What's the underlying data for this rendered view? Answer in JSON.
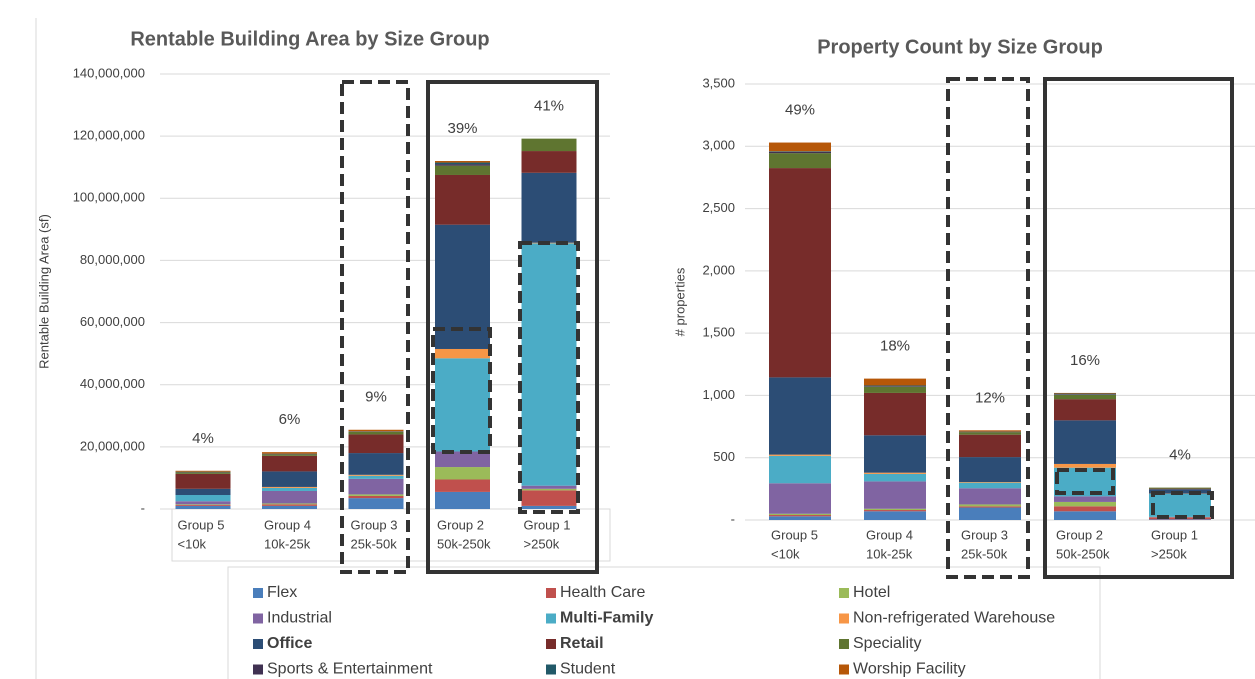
{
  "chart_data": [
    {
      "type": "bar",
      "stacked": true,
      "title": "Rentable Building Area by Size Group",
      "y_label": "Rentable Building Area (sf)",
      "categories": [
        [
          "Group 5",
          "<10k"
        ],
        [
          "Group 4",
          "10k-25k"
        ],
        [
          "Group 3",
          "25k-50k"
        ],
        [
          "Group 2",
          "50k-250k"
        ],
        [
          "Group 1",
          ">250k"
        ]
      ],
      "percent_labels": [
        "4%",
        "6%",
        "9%",
        "39%",
        "41%"
      ],
      "ylim": [
        0,
        140000000
      ],
      "yticks": [
        {
          "value": 0,
          "label": "-"
        },
        {
          "value": 20000000,
          "label": "20,000,000"
        },
        {
          "value": 40000000,
          "label": "40,000,000"
        },
        {
          "value": 60000000,
          "label": "60,000,000"
        },
        {
          "value": 80000000,
          "label": "80,000,000"
        },
        {
          "value": 100000000,
          "label": "100,000,000"
        },
        {
          "value": 120000000,
          "label": "120,000,000"
        },
        {
          "value": 140000000,
          "label": "140,000,000"
        }
      ],
      "grid": true,
      "series": [
        {
          "name": "Flex",
          "color": "#4a7ebb",
          "values": [
            1000000,
            1000000,
            3500000,
            5500000,
            1000000
          ]
        },
        {
          "name": "Health Care",
          "color": "#c0504d",
          "values": [
            300000,
            500000,
            700000,
            4000000,
            5000000
          ]
        },
        {
          "name": "Hotel",
          "color": "#9bbb59",
          "values": [
            200000,
            300000,
            500000,
            4000000,
            500000
          ]
        },
        {
          "name": "Industrial",
          "color": "#8064a2",
          "values": [
            1000000,
            4000000,
            5000000,
            5000000,
            1000000
          ]
        },
        {
          "name": "Multi-Family",
          "color": "#4bacc6",
          "bold": true,
          "values": [
            2000000,
            1000000,
            1000000,
            30000000,
            78000000
          ]
        },
        {
          "name": "Non-refrigerated Warehouse",
          "color": "#f79646",
          "values": [
            0,
            300000,
            300000,
            3000000,
            200000
          ]
        },
        {
          "name": "Office",
          "color": "#2c4d75",
          "bold": true,
          "values": [
            2000000,
            5000000,
            7000000,
            40000000,
            22500000
          ]
        },
        {
          "name": "Retail",
          "color": "#772c2a",
          "bold": true,
          "values": [
            4800000,
            5000000,
            6000000,
            16000000,
            7000000
          ]
        },
        {
          "name": "Speciality",
          "color": "#5f7530",
          "values": [
            500000,
            500000,
            800000,
            3000000,
            4000000
          ]
        },
        {
          "name": "Sports & Entertainment",
          "color": "#403152",
          "values": [
            100000,
            100000,
            100000,
            500000,
            0
          ]
        },
        {
          "name": "Student",
          "color": "#215968",
          "values": [
            100000,
            100000,
            100000,
            500000,
            0
          ]
        },
        {
          "name": "Worship Facility",
          "color": "#b65708",
          "values": [
            300000,
            500000,
            500000,
            500000,
            0
          ]
        }
      ]
    },
    {
      "type": "bar",
      "stacked": true,
      "title": "Property Count by Size Group",
      "y_label": "# properties",
      "categories": [
        [
          "Group 5",
          "<10k"
        ],
        [
          "Group 4",
          "10k-25k"
        ],
        [
          "Group 3",
          "25k-50k"
        ],
        [
          "Group 2",
          "50k-250k"
        ],
        [
          "Group 1",
          ">250k"
        ]
      ],
      "percent_labels": [
        "49%",
        "18%",
        "12%",
        "16%",
        "4%"
      ],
      "ylim": [
        0,
        3500
      ],
      "yticks": [
        {
          "value": 0,
          "label": "-"
        },
        500,
        {
          "value": 1000,
          "label": "1,000"
        },
        {
          "value": 1500,
          "label": "1,500"
        },
        {
          "value": 2000,
          "label": "2,000"
        },
        {
          "value": 2500,
          "label": "2,500"
        },
        {
          "value": 3000,
          "label": "3,000"
        },
        {
          "value": 3500,
          "label": "3,500"
        }
      ],
      "grid": true,
      "series": [
        {
          "name": "Flex",
          "color": "#4a7ebb",
          "values": [
            30,
            70,
            100,
            70,
            5
          ]
        },
        {
          "name": "Health Care",
          "color": "#c0504d",
          "values": [
            10,
            10,
            10,
            40,
            15
          ]
        },
        {
          "name": "Hotel",
          "color": "#9bbb59",
          "values": [
            10,
            10,
            15,
            35,
            2
          ]
        },
        {
          "name": "Industrial",
          "color": "#8064a2",
          "values": [
            245,
            220,
            130,
            45,
            3
          ]
        },
        {
          "name": "Multi-Family",
          "color": "#4bacc6",
          "bold": true,
          "values": [
            220,
            60,
            45,
            230,
            185
          ]
        },
        {
          "name": "Non-refrigerated Warehouse",
          "color": "#f79646",
          "values": [
            10,
            10,
            5,
            30,
            2
          ]
        },
        {
          "name": "Office",
          "color": "#2c4d75",
          "bold": true,
          "values": [
            620,
            300,
            200,
            350,
            35
          ]
        },
        {
          "name": "Retail",
          "color": "#772c2a",
          "bold": true,
          "values": [
            1680,
            340,
            180,
            170,
            5
          ]
        },
        {
          "name": "Speciality",
          "color": "#5f7530",
          "values": [
            120,
            50,
            20,
            35,
            8
          ]
        },
        {
          "name": "Sports & Entertainment",
          "color": "#403152",
          "values": [
            10,
            5,
            3,
            5,
            0
          ]
        },
        {
          "name": "Student",
          "color": "#215968",
          "values": [
            5,
            5,
            2,
            5,
            0
          ]
        },
        {
          "name": "Worship Facility",
          "color": "#b65708",
          "values": [
            70,
            55,
            10,
            5,
            0
          ]
        }
      ]
    }
  ]
}
